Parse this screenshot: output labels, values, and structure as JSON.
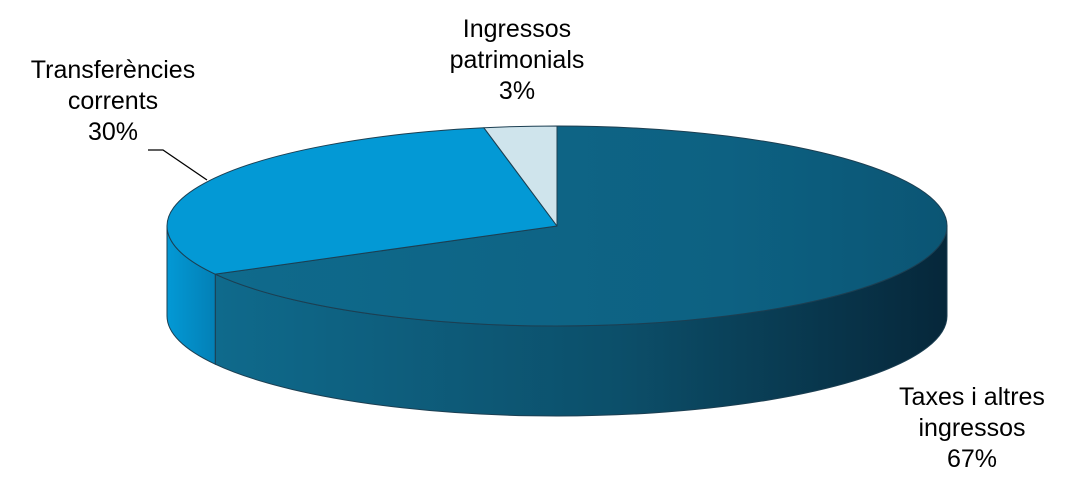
{
  "chart_data": {
    "type": "pie",
    "style": "3d",
    "slices": [
      {
        "label": [
          "Taxes i altres",
          "ingressos"
        ],
        "percent_label": "67%",
        "value": 67,
        "color": "#0f6a8c"
      },
      {
        "label": [
          "Transferències",
          "corrents"
        ],
        "percent_label": "30%",
        "value": 30,
        "color": "#0399d5"
      },
      {
        "label": [
          "Ingressos",
          "patrimonials"
        ],
        "percent_label": "3%",
        "value": 3,
        "color": "#cfe4ec"
      }
    ]
  }
}
